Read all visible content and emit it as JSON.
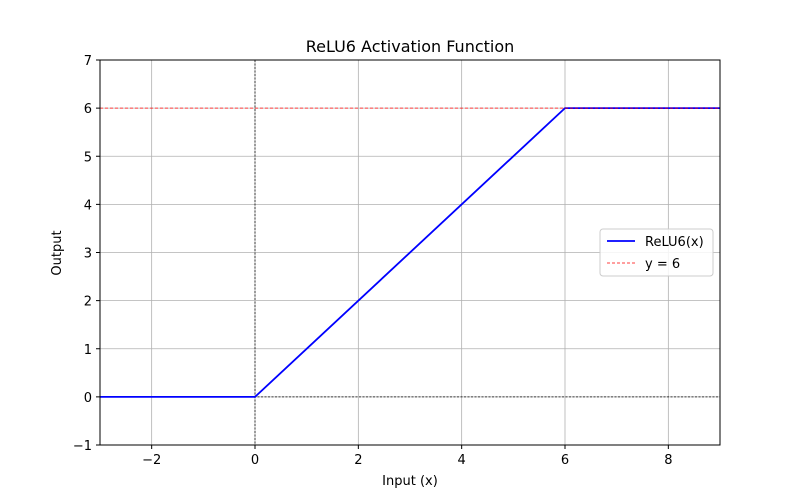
{
  "chart_data": {
    "type": "line",
    "title": "ReLU6 Activation Function",
    "xlabel": "Input (x)",
    "ylabel": "Output",
    "xlim": [
      -3,
      9
    ],
    "ylim": [
      -1,
      7
    ],
    "xticks": [
      -2,
      0,
      2,
      4,
      6,
      8
    ],
    "yticks": [
      -1,
      0,
      1,
      2,
      3,
      4,
      5,
      6,
      7
    ],
    "xtick_labels": [
      "−2",
      "0",
      "2",
      "4",
      "6",
      "8"
    ],
    "ytick_labels": [
      "−1",
      "0",
      "1",
      "2",
      "3",
      "4",
      "5",
      "6",
      "7"
    ],
    "grid": true,
    "legend_placement": "center-right",
    "series": [
      {
        "name": "ReLU6(x)",
        "color": "#0000ff",
        "style": "solid",
        "x": [
          -3,
          -0.1,
          0,
          6,
          6.1,
          9
        ],
        "y": [
          0,
          0,
          0,
          6,
          6,
          6
        ]
      },
      {
        "name": "y = 6",
        "color": "#ff0000",
        "style": "dashed",
        "x": [
          -3,
          9
        ],
        "y": [
          6,
          6
        ]
      }
    ],
    "reference_lines": [
      {
        "axis": "x",
        "value": 0,
        "color": "#000000",
        "style": "dashed"
      },
      {
        "axis": "y",
        "value": 0,
        "color": "#000000",
        "style": "dashed"
      }
    ]
  }
}
